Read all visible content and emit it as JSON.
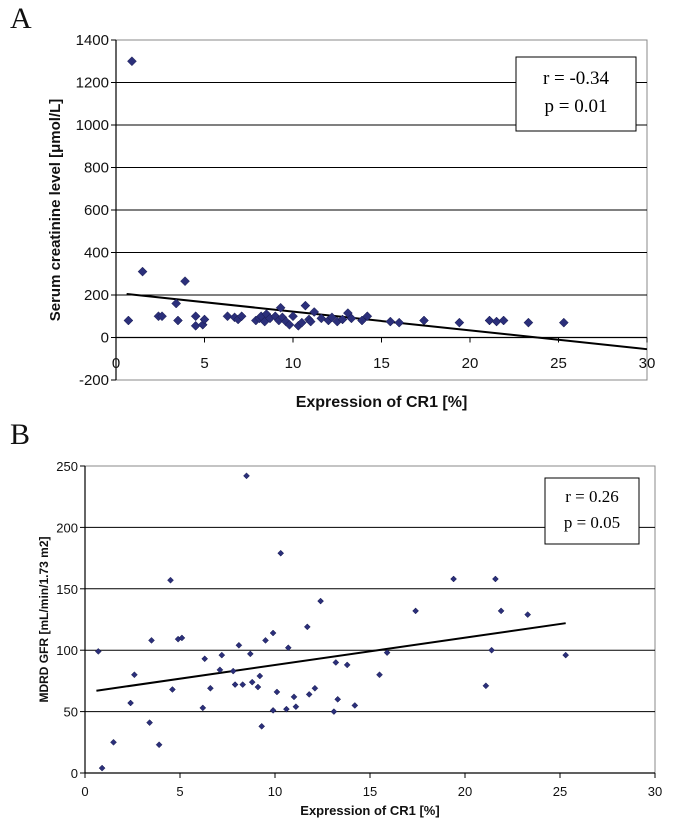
{
  "panels": [
    {
      "letter": "A"
    },
    {
      "letter": "B"
    }
  ],
  "chart_data": [
    {
      "type": "scatter",
      "xlabel": "Expression of CR1  [%]",
      "ylabel": "Serum creatinine level [μmol/L]",
      "xlim": [
        0,
        30
      ],
      "ylim": [
        -200,
        1400
      ],
      "xticks": [
        0,
        5,
        10,
        15,
        20,
        25,
        30
      ],
      "yticks": [
        -200,
        0,
        200,
        400,
        600,
        800,
        1000,
        1200,
        1400
      ],
      "grid": "horizontal",
      "annotation": [
        "r = -0.34",
        "p = 0.01"
      ],
      "annotation_position": "top-right",
      "marker": "diamond",
      "marker_color": "#2b2f7a",
      "trendline": {
        "x": [
          0.6,
          30
        ],
        "y": [
          205,
          -55
        ]
      },
      "points": [
        [
          0.7,
          80
        ],
        [
          0.9,
          1300
        ],
        [
          1.5,
          310
        ],
        [
          2.4,
          100
        ],
        [
          2.6,
          100
        ],
        [
          3.4,
          160
        ],
        [
          3.5,
          80
        ],
        [
          3.9,
          265
        ],
        [
          4.5,
          55
        ],
        [
          4.5,
          100
        ],
        [
          4.9,
          60
        ],
        [
          5.0,
          85
        ],
        [
          6.3,
          100
        ],
        [
          6.7,
          95
        ],
        [
          6.9,
          85
        ],
        [
          7.1,
          100
        ],
        [
          7.9,
          80
        ],
        [
          8.1,
          90
        ],
        [
          8.2,
          100
        ],
        [
          8.4,
          75
        ],
        [
          8.5,
          110
        ],
        [
          8.7,
          90
        ],
        [
          9.0,
          100
        ],
        [
          9.2,
          80
        ],
        [
          9.3,
          140
        ],
        [
          9.4,
          95
        ],
        [
          9.6,
          75
        ],
        [
          9.8,
          60
        ],
        [
          10.0,
          100
        ],
        [
          10.3,
          55
        ],
        [
          10.5,
          70
        ],
        [
          10.7,
          150
        ],
        [
          10.9,
          85
        ],
        [
          11.0,
          75
        ],
        [
          11.2,
          120
        ],
        [
          11.6,
          90
        ],
        [
          12.0,
          80
        ],
        [
          12.2,
          95
        ],
        [
          12.5,
          75
        ],
        [
          12.8,
          85
        ],
        [
          13.1,
          115
        ],
        [
          13.3,
          90
        ],
        [
          13.9,
          80
        ],
        [
          14.2,
          100
        ],
        [
          15.5,
          75
        ],
        [
          16.0,
          70
        ],
        [
          17.4,
          80
        ],
        [
          19.4,
          70
        ],
        [
          21.1,
          80
        ],
        [
          21.5,
          75
        ],
        [
          21.9,
          80
        ],
        [
          23.3,
          70
        ],
        [
          25.3,
          70
        ]
      ]
    },
    {
      "type": "scatter",
      "xlabel": "Expression of CR1 [%]",
      "ylabel": "MDRD GFR [mL/min/1.73 m2]",
      "xlim": [
        0,
        30
      ],
      "ylim": [
        0,
        250
      ],
      "xticks": [
        0,
        5,
        10,
        15,
        20,
        25,
        30
      ],
      "yticks": [
        0,
        50,
        100,
        150,
        200,
        250
      ],
      "grid": "horizontal",
      "annotation": [
        "r = 0.26",
        "p = 0.05"
      ],
      "annotation_position": "top-right",
      "marker": "diamond",
      "marker_color": "#2b2f7a",
      "trendline": {
        "x": [
          0.6,
          25.3
        ],
        "y": [
          67,
          122
        ]
      },
      "points": [
        [
          0.7,
          99
        ],
        [
          0.9,
          4
        ],
        [
          1.5,
          25
        ],
        [
          2.4,
          57
        ],
        [
          2.6,
          80
        ],
        [
          3.4,
          41
        ],
        [
          3.5,
          108
        ],
        [
          3.9,
          23
        ],
        [
          4.5,
          157
        ],
        [
          4.6,
          68
        ],
        [
          4.9,
          109
        ],
        [
          5.1,
          110
        ],
        [
          6.2,
          53
        ],
        [
          6.3,
          93
        ],
        [
          6.6,
          69
        ],
        [
          7.1,
          84
        ],
        [
          7.2,
          96
        ],
        [
          7.8,
          83
        ],
        [
          7.9,
          72
        ],
        [
          8.1,
          104
        ],
        [
          8.3,
          72
        ],
        [
          8.5,
          242
        ],
        [
          8.7,
          97
        ],
        [
          8.8,
          74
        ],
        [
          9.1,
          70
        ],
        [
          9.2,
          79
        ],
        [
          9.3,
          38
        ],
        [
          9.5,
          108
        ],
        [
          9.9,
          51
        ],
        [
          9.9,
          114
        ],
        [
          10.1,
          66
        ],
        [
          10.3,
          179
        ],
        [
          10.6,
          52
        ],
        [
          10.7,
          102
        ],
        [
          11.0,
          62
        ],
        [
          11.1,
          54
        ],
        [
          11.7,
          119
        ],
        [
          11.8,
          64
        ],
        [
          12.1,
          69
        ],
        [
          12.4,
          140
        ],
        [
          13.1,
          50
        ],
        [
          13.2,
          90
        ],
        [
          13.3,
          60
        ],
        [
          13.8,
          88
        ],
        [
          14.2,
          55
        ],
        [
          15.5,
          80
        ],
        [
          15.9,
          98
        ],
        [
          17.4,
          132
        ],
        [
          19.4,
          158
        ],
        [
          21.1,
          71
        ],
        [
          21.4,
          100
        ],
        [
          21.6,
          158
        ],
        [
          21.9,
          132
        ],
        [
          23.3,
          129
        ],
        [
          25.3,
          96
        ]
      ]
    }
  ]
}
